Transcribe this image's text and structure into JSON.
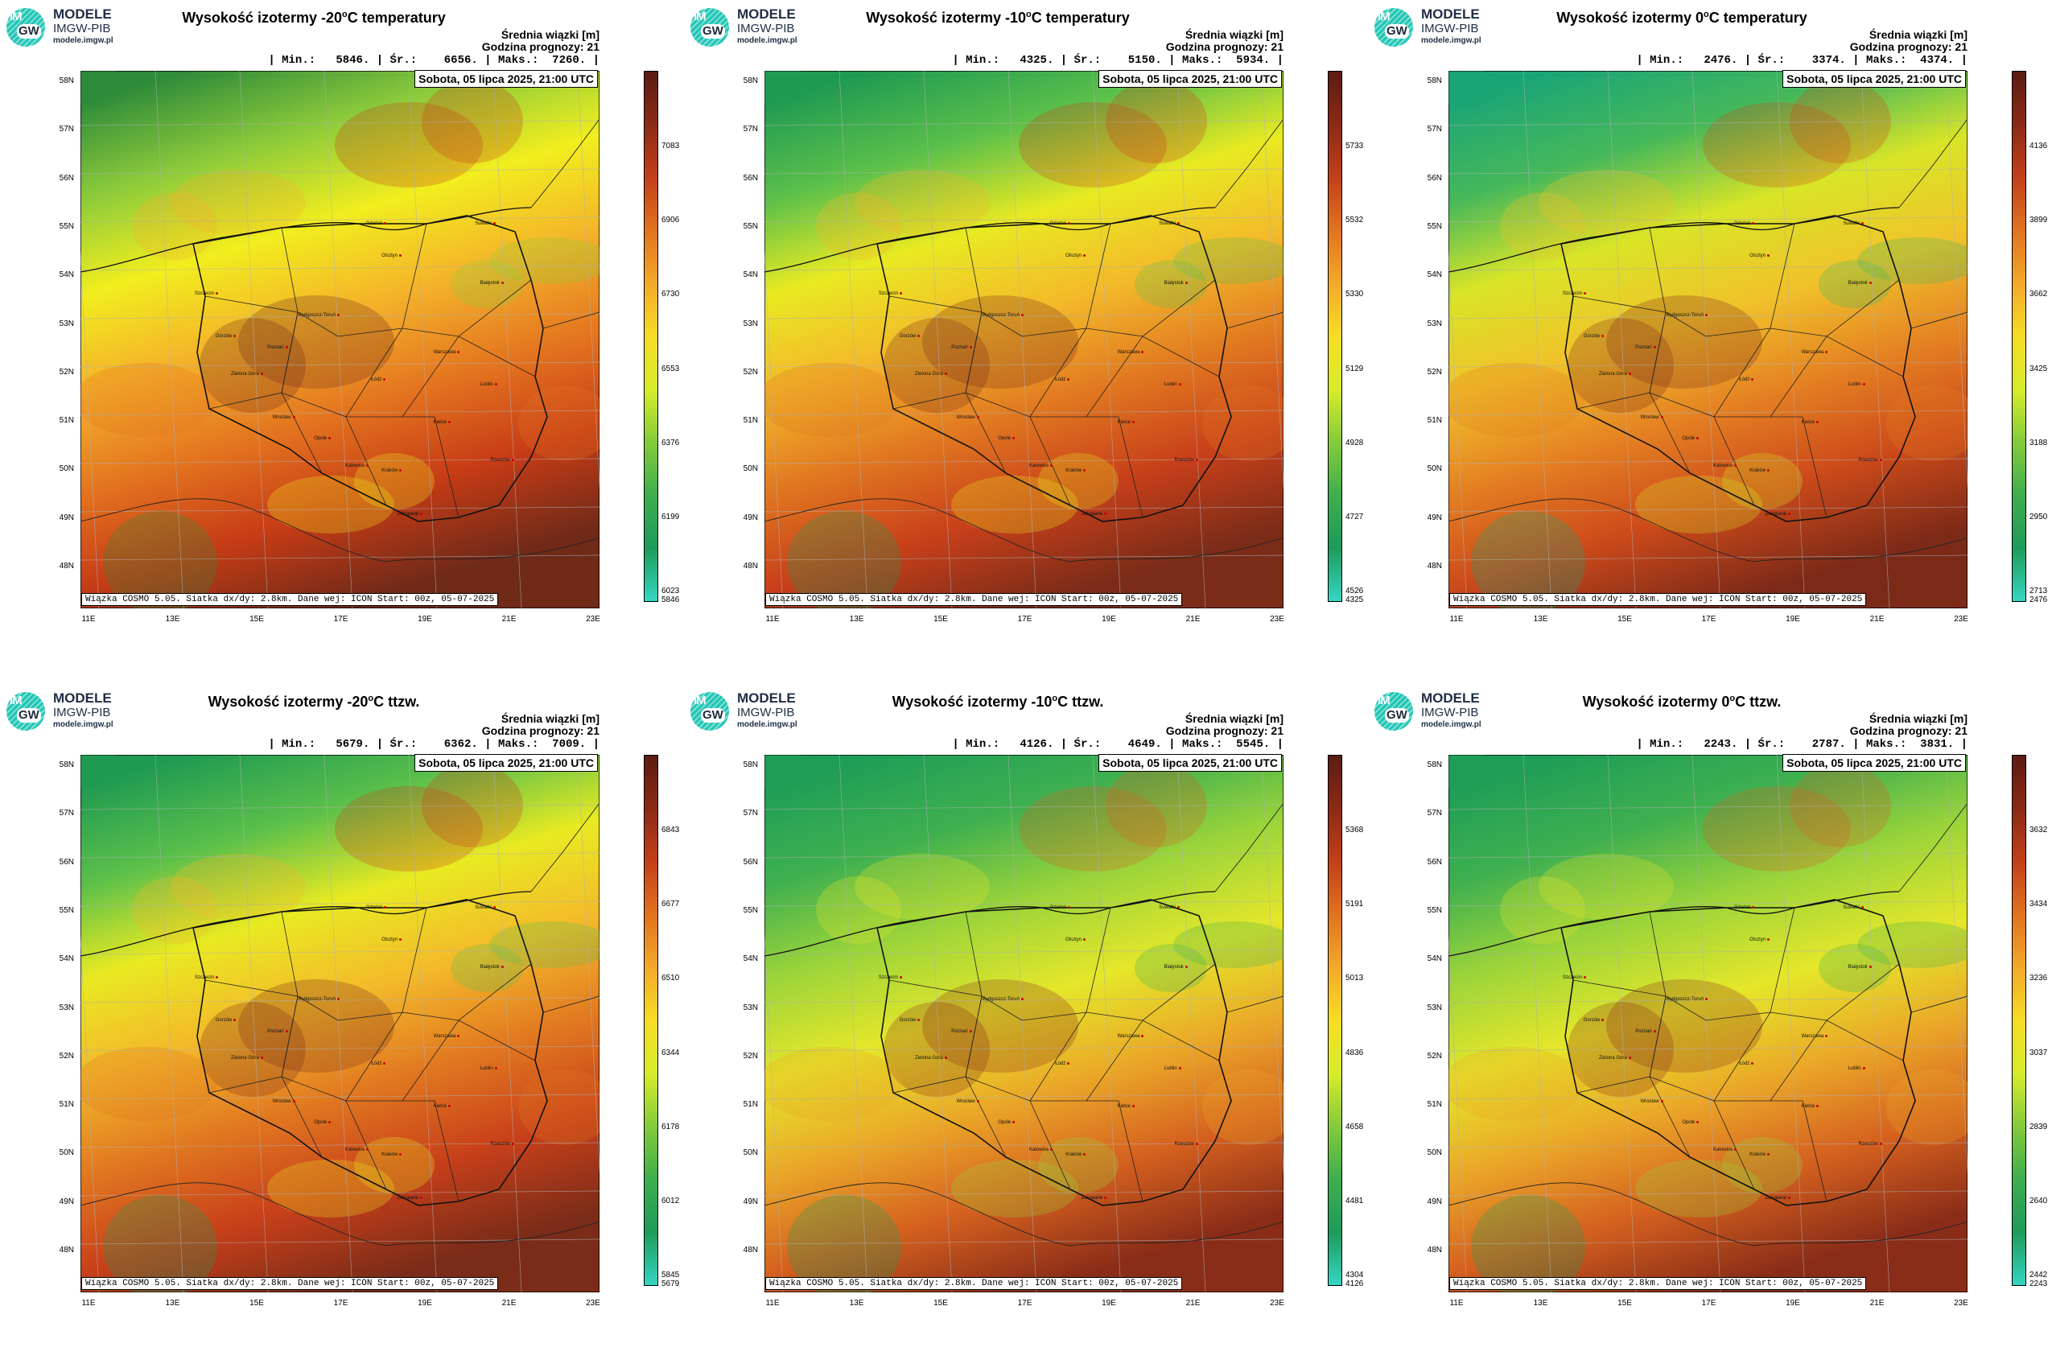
{
  "panels": [
    {
      "title": "Wysokość izotermy -20",
      "title_suffix": "C temperatury",
      "hdr1": "Średnia wiązki [m]",
      "hdr2": "Godzina prognozy: 21",
      "stats": "| Min.:   5846. | Śr.:    6656. | Maks.:  7260. |",
      "date": "Sobota, 05 lipca 2025, 21:00 UTC",
      "footer": "Wiązka COSMO 5.05. Siatka dx/dy: 2.8km. Dane wej: ICON Start: 00z, 05-07-2025",
      "colorbar": [
        "7083",
        "6906",
        "6730",
        "6553",
        "6376",
        "6199",
        "6023",
        "5846"
      ],
      "palette": "warm"
    },
    {
      "title": "Wysokość izotermy -10",
      "title_suffix": "C temperatury",
      "hdr1": "Średnia wiązki [m]",
      "hdr2": "Godzina prognozy: 21",
      "stats": "| Min.:   4325. | Śr.:    5150. | Maks.:  5934. |",
      "date": "Sobota, 05 lipca 2025, 21:00 UTC",
      "footer": "Wiązka COSMO 5.05. Siatka dx/dy: 2.8km. Dane wej: ICON Start: 00z, 05-07-2025",
      "colorbar": [
        "5733",
        "5532",
        "5330",
        "5129",
        "4928",
        "4727",
        "4526",
        "4325"
      ],
      "palette": "mid"
    },
    {
      "title": "Wysokość izotermy 0",
      "title_suffix": "C temperatury",
      "hdr1": "Średnia wiązki [m]",
      "hdr2": "Godzina prognozy: 21",
      "stats": "| Min.:   2476. | Śr.:    3374. | Maks.:  4374. |",
      "date": "Sobota, 05 lipca 2025, 21:00 UTC",
      "footer": "Wiązka COSMO 5.05. Siatka dx/dy: 2.8km. Dane wej: ICON Start: 00z, 05-07-2025",
      "colorbar": [
        "4136",
        "3899",
        "3662",
        "3425",
        "3188",
        "2950",
        "2713",
        "2476"
      ],
      "palette": "cool"
    },
    {
      "title": "Wysokość izotermy -20",
      "title_suffix": "C ttzw.",
      "hdr1": "Średnia wiązki [m]",
      "hdr2": "Godzina prognozy: 21",
      "stats": "| Min.:   5679. | Śr.:    6362. | Maks.:  7009. |",
      "date": "Sobota, 05 lipca 2025, 21:00 UTC",
      "footer": "Wiązka COSMO 5.05. Siatka dx/dy: 2.8km. Dane wej: ICON Start: 00z, 05-07-2025",
      "colorbar": [
        "6843",
        "6677",
        "6510",
        "6344",
        "6178",
        "6012",
        "5845",
        "5679"
      ],
      "palette": "mid"
    },
    {
      "title": "Wysokość izotermy -10",
      "title_suffix": "C ttzw.",
      "hdr1": "Średnia wiązki [m]",
      "hdr2": "Godzina prognozy: 21",
      "stats": "| Min.:   4126. | Śr.:    4649. | Maks.:  5545. |",
      "date": "Sobota, 05 lipca 2025, 21:00 UTC",
      "footer": "Wiązka COSMO 5.05. Siatka dx/dy: 2.8km. Dane wej: ICON Start: 00z, 05-07-2025",
      "colorbar": [
        "5368",
        "5191",
        "5013",
        "4836",
        "4658",
        "4481",
        "4304",
        "4126"
      ],
      "palette": "green"
    },
    {
      "title": "Wysokość izotermy 0",
      "title_suffix": "C ttzw.",
      "hdr1": "Średnia wiązki [m]",
      "hdr2": "Godzina prognozy: 21",
      "stats": "| Min.:   2243. | Śr.:    2787. | Maks.:  3831. |",
      "date": "Sobota, 05 lipca 2025, 21:00 UTC",
      "footer": "Wiązka COSMO 5.05. Siatka dx/dy: 2.8km. Dane wej: ICON Start: 00z, 05-07-2025",
      "colorbar": [
        "3632",
        "3434",
        "3236",
        "3037",
        "2839",
        "2640",
        "2442",
        "2243"
      ],
      "palette": "green"
    }
  ],
  "logo": {
    "line1": "MODELE",
    "line2": "IMGW-PIB",
    "line3": "modele.imgw.pl",
    "mark_top": "IM",
    "mark_bottom": "GW"
  },
  "title_degree": "o",
  "lat_labels": [
    "58N",
    "57N",
    "56N",
    "55N",
    "54N",
    "53N",
    "52N",
    "51N",
    "50N",
    "49N",
    "48N"
  ],
  "lon_labels": [
    "11E",
    "13E",
    "15E",
    "17E",
    "19E",
    "21E",
    "23E"
  ],
  "cities": [
    "Gdańsk",
    "Olsztyn",
    "Suwałki",
    "Szczecin",
    "Bydgoszcz-Toruń",
    "Białystok",
    "Gorzów",
    "Poznań",
    "Warszawa",
    "Zielona Góra",
    "Łódź",
    "Lublin",
    "Wrocław",
    "Kielce",
    "Opole",
    "Rzeszów",
    "Katowice",
    "Kraków",
    "Zakopane"
  ]
}
